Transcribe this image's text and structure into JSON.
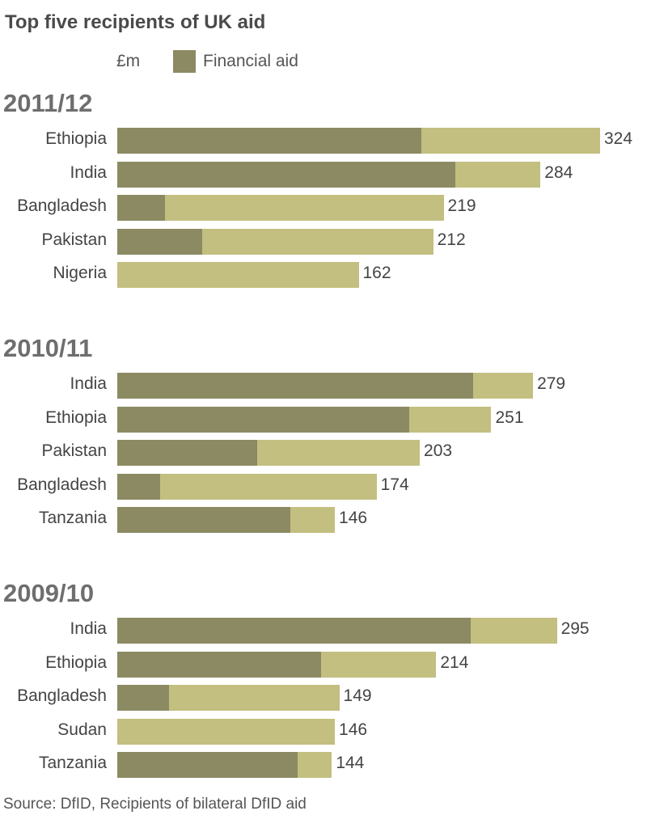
{
  "title": "Top five recipients of UK aid",
  "legend": {
    "unit": "£m",
    "financial_label": "Financial aid"
  },
  "colors": {
    "financial": "#8b8a62",
    "total": "#c2bf80"
  },
  "source": "Source: DfID, Recipients of bilateral DfID aid",
  "chart_data": {
    "type": "bar",
    "unit": "£m",
    "panels": [
      {
        "period": "2011/12",
        "rows": [
          {
            "country": "Ethiopia",
            "total": 324,
            "financial": 204
          },
          {
            "country": "India",
            "total": 284,
            "financial": 227
          },
          {
            "country": "Bangladesh",
            "total": 219,
            "financial": 32
          },
          {
            "country": "Pakistan",
            "total": 212,
            "financial": 57
          },
          {
            "country": "Nigeria",
            "total": 162,
            "financial": 0
          }
        ]
      },
      {
        "period": "2010/11",
        "rows": [
          {
            "country": "India",
            "total": 279,
            "financial": 239
          },
          {
            "country": "Ethiopia",
            "total": 251,
            "financial": 196
          },
          {
            "country": "Pakistan",
            "total": 203,
            "financial": 94
          },
          {
            "country": "Bangladesh",
            "total": 174,
            "financial": 29
          },
          {
            "country": "Tanzania",
            "total": 146,
            "financial": 116
          }
        ]
      },
      {
        "period": "2009/10",
        "rows": [
          {
            "country": "India",
            "total": 295,
            "financial": 237
          },
          {
            "country": "Ethiopia",
            "total": 214,
            "financial": 137
          },
          {
            "country": "Bangladesh",
            "total": 149,
            "financial": 35
          },
          {
            "country": "Sudan",
            "total": 146,
            "financial": 0
          },
          {
            "country": "Tanzania",
            "total": 144,
            "financial": 121
          }
        ]
      }
    ]
  }
}
